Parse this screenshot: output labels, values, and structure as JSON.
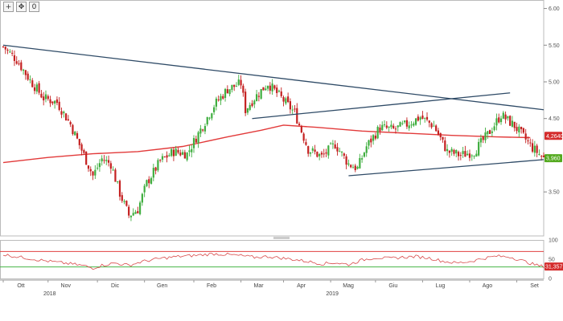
{
  "toolbar": {
    "buttons": [
      {
        "icon": "crosshair-icon",
        "glyph": "+"
      },
      {
        "icon": "move-icon",
        "glyph": "✥"
      },
      {
        "icon": "zoom-reset-icon",
        "glyph": "0"
      }
    ]
  },
  "chart_data": {
    "type": "candlestick",
    "title": "",
    "xlabel": "",
    "ylabel": "",
    "ylim": [
      2.9,
      6.05
    ],
    "yticks": [
      "6.00",
      "5.50",
      "5.00",
      "4.50",
      "3.50"
    ],
    "x_labels": [
      "Ott",
      "Nov",
      "Dic",
      "Gen",
      "Feb",
      "Mar",
      "Apr",
      "Mag",
      "Giu",
      "Lug",
      "Ago",
      "Set"
    ],
    "year_labels": [
      "2018",
      "2019"
    ],
    "colors": {
      "up": "#3fae3f",
      "down": "#c42020",
      "ma": "#e23a3a",
      "trend": "#2e4a66"
    },
    "price_close_path": [
      [
        0,
        5.48
      ],
      [
        6,
        5.3
      ],
      [
        12,
        5.02
      ],
      [
        18,
        4.78
      ],
      [
        24,
        4.72
      ],
      [
        30,
        4.42
      ],
      [
        36,
        4.0
      ],
      [
        40,
        3.72
      ],
      [
        44,
        3.95
      ],
      [
        48,
        3.88
      ],
      [
        52,
        3.48
      ],
      [
        56,
        3.18
      ],
      [
        60,
        3.26
      ],
      [
        64,
        3.62
      ],
      [
        70,
        3.92
      ],
      [
        76,
        4.05
      ],
      [
        82,
        4.02
      ],
      [
        88,
        4.35
      ],
      [
        94,
        4.68
      ],
      [
        100,
        4.9
      ],
      [
        106,
        4.98
      ],
      [
        108,
        4.62
      ],
      [
        112,
        4.78
      ],
      [
        118,
        4.98
      ],
      [
        124,
        4.78
      ],
      [
        130,
        4.58
      ],
      [
        136,
        4.08
      ],
      [
        142,
        3.98
      ],
      [
        148,
        4.15
      ],
      [
        154,
        3.88
      ],
      [
        158,
        3.82
      ],
      [
        162,
        4.12
      ],
      [
        168,
        4.38
      ],
      [
        174,
        4.35
      ],
      [
        180,
        4.42
      ],
      [
        186,
        4.52
      ],
      [
        192,
        4.4
      ],
      [
        198,
        4.05
      ],
      [
        204,
        4.0
      ],
      [
        210,
        4.05
      ],
      [
        216,
        4.28
      ],
      [
        222,
        4.55
      ],
      [
        228,
        4.4
      ],
      [
        232,
        4.25
      ],
      [
        236,
        4.1
      ],
      [
        241,
        3.96
      ]
    ],
    "moving_average": [
      [
        0,
        3.9
      ],
      [
        20,
        3.97
      ],
      [
        40,
        4.02
      ],
      [
        60,
        4.05
      ],
      [
        80,
        4.12
      ],
      [
        100,
        4.25
      ],
      [
        115,
        4.34
      ],
      [
        125,
        4.41
      ],
      [
        140,
        4.38
      ],
      [
        160,
        4.33
      ],
      [
        180,
        4.3
      ],
      [
        200,
        4.27
      ],
      [
        220,
        4.25
      ],
      [
        235,
        4.24
      ]
    ],
    "trendlines": [
      {
        "from": [
          0,
          5.5
        ],
        "to": [
          241,
          4.62
        ]
      },
      {
        "from": [
          111,
          4.5
        ],
        "to": [
          226,
          4.85
        ]
      },
      {
        "from": [
          154,
          3.72
        ],
        "to": [
          241,
          3.94
        ]
      }
    ],
    "last_price_badge": {
      "value": "3,960",
      "color": "#53a91e"
    },
    "ma_badge": {
      "value": "4,2640",
      "color": "#d42c2c"
    },
    "oscillator": {
      "yticks": [
        "100",
        "50",
        "0"
      ],
      "ylim": [
        0,
        100
      ],
      "upper_level": 70,
      "lower_level": 30,
      "last_badge": {
        "value": "31,3571",
        "color": "#d42c2c"
      },
      "path": [
        [
          0,
          62
        ],
        [
          8,
          55
        ],
        [
          16,
          48
        ],
        [
          24,
          42
        ],
        [
          30,
          38
        ],
        [
          36,
          33
        ],
        [
          40,
          27
        ],
        [
          44,
          34
        ],
        [
          50,
          40
        ],
        [
          56,
          34
        ],
        [
          62,
          44
        ],
        [
          70,
          52
        ],
        [
          78,
          57
        ],
        [
          86,
          60
        ],
        [
          94,
          64
        ],
        [
          100,
          62
        ],
        [
          106,
          59
        ],
        [
          112,
          55
        ],
        [
          118,
          57
        ],
        [
          124,
          53
        ],
        [
          130,
          49
        ],
        [
          136,
          44
        ],
        [
          142,
          38
        ],
        [
          148,
          41
        ],
        [
          154,
          36
        ],
        [
          160,
          48
        ],
        [
          166,
          54
        ],
        [
          172,
          52
        ],
        [
          178,
          55
        ],
        [
          184,
          57
        ],
        [
          190,
          53
        ],
        [
          196,
          45
        ],
        [
          202,
          40
        ],
        [
          208,
          44
        ],
        [
          214,
          52
        ],
        [
          220,
          58
        ],
        [
          226,
          56
        ],
        [
          232,
          45
        ],
        [
          238,
          34
        ],
        [
          241,
          31
        ]
      ]
    }
  }
}
